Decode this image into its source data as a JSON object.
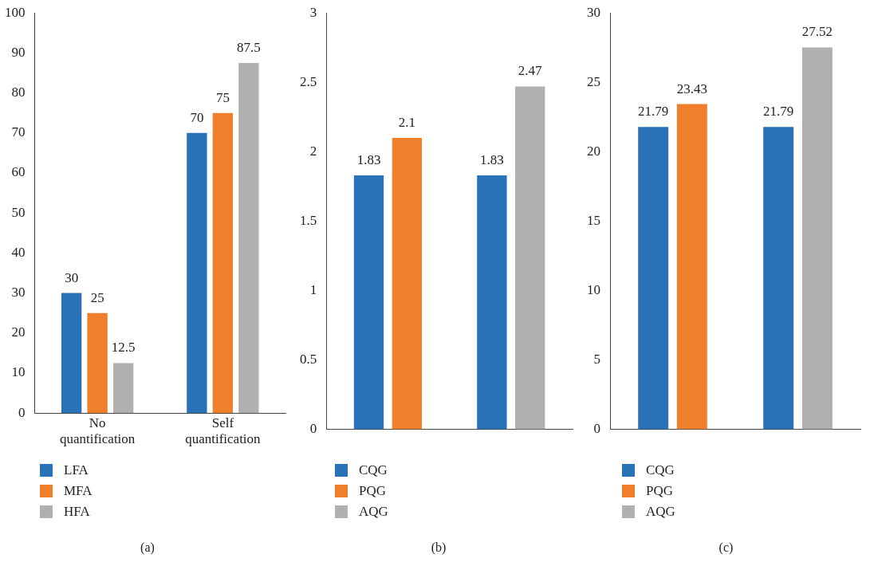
{
  "chart_data": [
    {
      "type": "bar",
      "categories": [
        "No quantification",
        "Self quantification"
      ],
      "ylim": [
        0,
        100
      ],
      "yticks": [
        0,
        10,
        20,
        30,
        40,
        50,
        60,
        70,
        80,
        90,
        100
      ],
      "grid": false,
      "legend": "bottom",
      "data_labels": true,
      "annotations": [
        "(a)"
      ],
      "series": [
        {
          "name": "LFA",
          "color": "#2a72b8",
          "values": [
            30,
            70
          ]
        },
        {
          "name": "MFA",
          "color": "#f07f2c",
          "values": [
            25,
            75
          ]
        },
        {
          "name": "HFA",
          "color": "#b0b0b3",
          "values": [
            12.5,
            87.5
          ]
        }
      ]
    },
    {
      "type": "bar",
      "categories": [
        null,
        null
      ],
      "ylim": [
        0,
        3
      ],
      "yticks": [
        0,
        0.5,
        1,
        1.5,
        2,
        2.5,
        3
      ],
      "grid": false,
      "legend": "bottom",
      "data_labels": true,
      "annotations": [
        "(b)"
      ],
      "series": [
        {
          "name": "CQG",
          "color": "#2a72b8",
          "values": [
            1.83,
            1.83
          ]
        },
        {
          "name": "PQG",
          "color": "#f07f2c",
          "values": [
            2.1,
            null
          ]
        },
        {
          "name": "AQG",
          "color": "#b0b0b3",
          "values": [
            null,
            2.47
          ]
        }
      ]
    },
    {
      "type": "bar",
      "categories": [
        null,
        null
      ],
      "ylim": [
        0,
        30
      ],
      "yticks": [
        0,
        5,
        10,
        15,
        20,
        25,
        30
      ],
      "grid": false,
      "legend": "bottom",
      "data_labels": true,
      "annotations": [
        "(c)"
      ],
      "series": [
        {
          "name": "CQG",
          "color": "#2a72b8",
          "values": [
            21.79,
            21.79
          ]
        },
        {
          "name": "PQG",
          "color": "#f07f2c",
          "values": [
            23.43,
            null
          ]
        },
        {
          "name": "AQG",
          "color": "#b0b0b3",
          "values": [
            null,
            27.52
          ]
        }
      ]
    }
  ]
}
